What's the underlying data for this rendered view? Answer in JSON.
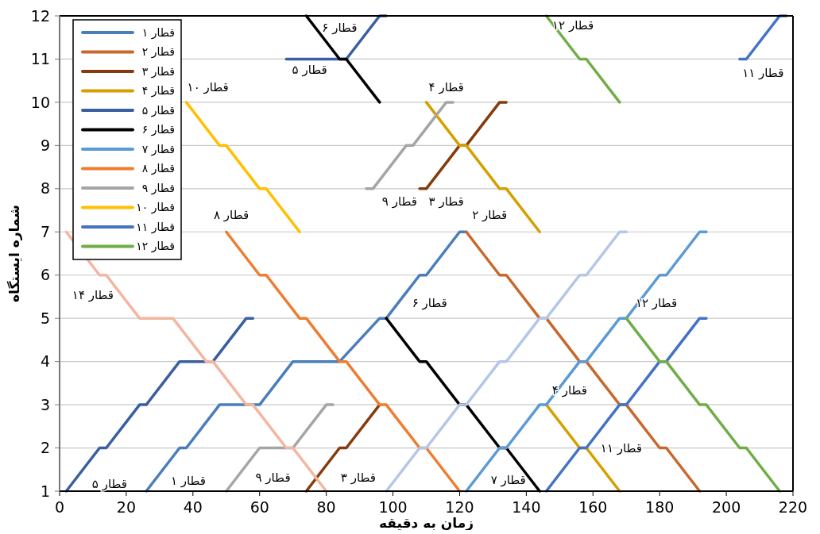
{
  "chart_data": {
    "type": "line",
    "xlabel": "زمان به دقیقه",
    "ylabel": "شماره ایستگاه",
    "xlim": [
      0,
      220
    ],
    "xticks": [
      0,
      20,
      40,
      60,
      80,
      100,
      120,
      140,
      160,
      180,
      200,
      220
    ],
    "ylim": [
      1,
      12
    ],
    "yticks": [
      1,
      2,
      3,
      4,
      5,
      6,
      7,
      8,
      9,
      10,
      11,
      12
    ],
    "grid": "y",
    "legend": "top left",
    "series": [
      {
        "name": "قطار ۱",
        "color": "#4a7ebb",
        "x": [
          26,
          36,
          38,
          48,
          60,
          70,
          84,
          96,
          98,
          108,
          110,
          120,
          122
        ],
        "values": [
          1,
          2,
          2,
          3,
          3,
          4,
          4,
          5,
          5,
          6,
          6,
          7,
          7
        ]
      },
      {
        "name": "قطار ۲",
        "color": "#c8682c",
        "x": [
          122,
          132,
          134,
          144,
          146,
          156,
          158,
          168,
          170,
          180,
          182,
          192
        ],
        "values": [
          7,
          6,
          6,
          5,
          5,
          4,
          4,
          3,
          3,
          2,
          2,
          1
        ]
      },
      {
        "name": "قطار ۳",
        "color": "#843c0c",
        "x": [
          74,
          84,
          86,
          96,
          98,
          108,
          110,
          120,
          122,
          132,
          134
        ],
        "values": [
          1,
          2,
          2,
          3,
          null,
          8,
          8,
          9,
          9,
          10,
          10
        ]
      },
      {
        "name": "قطار ۴",
        "color": "#d4a000",
        "x": [
          110,
          120,
          122,
          132,
          134,
          144,
          145,
          146,
          156,
          158,
          168
        ],
        "values": [
          10,
          9,
          9,
          8,
          8,
          7,
          null,
          3,
          2,
          2,
          1
        ]
      },
      {
        "name": "قطار ۵",
        "color": "#3a5fa0",
        "x": [
          2,
          12,
          14,
          24,
          26,
          36,
          46,
          56,
          58,
          60,
          68,
          86,
          96,
          98
        ],
        "values": [
          1,
          2,
          2,
          3,
          3,
          4,
          4,
          5,
          5,
          null,
          11,
          11,
          12,
          12
        ]
      },
      {
        "name": "قطار ۶",
        "color": "#000000",
        "x": [
          74,
          84,
          86,
          96,
          97,
          98,
          108,
          110,
          120,
          122,
          132,
          134,
          144
        ],
        "values": [
          12,
          11,
          11,
          10,
          null,
          5,
          4,
          4,
          3,
          3,
          2,
          2,
          1
        ]
      },
      {
        "name": "قطار ۷",
        "color": "#5b9bd5",
        "x": [
          122,
          132,
          134,
          144,
          146,
          156,
          158,
          168,
          170,
          180,
          182,
          192,
          194
        ],
        "values": [
          1,
          2,
          2,
          3,
          3,
          4,
          4,
          5,
          5,
          6,
          6,
          7,
          7
        ]
      },
      {
        "name": "قطار ۸",
        "color": "#ed7d31",
        "x": [
          50,
          60,
          62,
          72,
          74,
          84,
          86,
          96,
          98,
          108,
          110,
          120
        ],
        "values": [
          7,
          6,
          6,
          5,
          5,
          4,
          4,
          3,
          3,
          2,
          2,
          1
        ]
      },
      {
        "name": "قطار ۹",
        "color": "#a5a5a5",
        "x": [
          50,
          60,
          70,
          80,
          82,
          90,
          92,
          94,
          104,
          106,
          116,
          118
        ],
        "values": [
          1,
          2,
          2,
          3,
          3,
          null,
          8,
          8,
          9,
          9,
          10,
          10
        ]
      },
      {
        "name": "قطار ۱۰",
        "color": "#ffc000",
        "x": [
          38,
          48,
          50,
          60,
          62,
          72
        ],
        "values": [
          10,
          9,
          9,
          8,
          8,
          7
        ]
      },
      {
        "name": "قطار ۱۱",
        "color": "#4472c4",
        "x": [
          146,
          156,
          158,
          168,
          170,
          180,
          182,
          192,
          194,
          200,
          204,
          206,
          216,
          218
        ],
        "values": [
          1,
          2,
          2,
          3,
          3,
          4,
          4,
          5,
          5,
          null,
          11,
          11,
          12,
          12
        ]
      },
      {
        "name": "قطار ۱۲",
        "color": "#70ad47",
        "x": [
          146,
          156,
          158,
          168,
          169,
          170,
          180,
          182,
          192,
          194,
          204,
          206,
          216
        ],
        "values": [
          12,
          11,
          11,
          10,
          null,
          5,
          4,
          4,
          3,
          3,
          2,
          2,
          1
        ]
      },
      {
        "color": "#b4c7e7",
        "x": [
          98,
          108,
          110,
          120,
          122,
          132,
          134,
          144,
          146,
          156,
          158,
          168,
          170
        ],
        "values": [
          1,
          2,
          2,
          3,
          3,
          4,
          4,
          5,
          5,
          6,
          6,
          7,
          7
        ]
      },
      {
        "color": "#f4b6a0",
        "x": [
          2,
          12,
          14,
          24,
          34,
          44,
          46,
          56,
          58,
          68,
          70,
          80
        ],
        "values": [
          7,
          6,
          6,
          5,
          5,
          4,
          4,
          3,
          3,
          2,
          2,
          1
        ]
      }
    ],
    "annotations": [
      "قطار ۶",
      "قطار ۵",
      "قطار ۱۰",
      "قطار ۱۲",
      "قطار ۱۱",
      "قطار ۴",
      "قطار ۹",
      "قطار ۳",
      "قطار ۲",
      "قطار ۸",
      "قطار ۱۴",
      "قطار ۶",
      "قطار ۱۲",
      "قطار ۴",
      "قطار ۱۱",
      "قطار ۷",
      "قطار ۵",
      "قطار ۱",
      "قطار ۹",
      "قطار ۳"
    ]
  }
}
